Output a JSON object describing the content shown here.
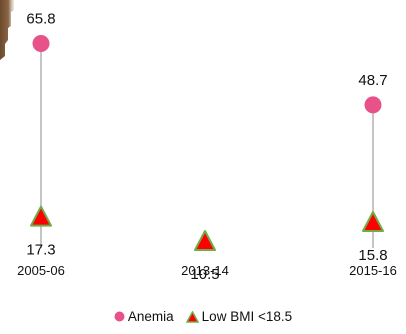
{
  "chart_data": {
    "type": "dot",
    "categories": [
      "2005-06",
      "2013-14",
      "2015-16"
    ],
    "series": [
      {
        "name": "Anemia",
        "marker": "circle",
        "color": "#e8528a",
        "values": [
          65.8,
          null,
          48.7
        ]
      },
      {
        "name": "Low BMI <18.5",
        "marker": "triangle",
        "color": "#ff0000",
        "edge_color": "#70ad47",
        "values": [
          17.3,
          10.5,
          15.8
        ]
      }
    ],
    "value_labels": {
      "Anemia": [
        "65.8",
        "",
        "48.7"
      ],
      "Low BMI <18.5": [
        "17.3",
        "10.5",
        "15.8"
      ]
    },
    "connector_color": "#a6a6a6",
    "legend_position": "bottom",
    "grid": false,
    "axes_visible": false,
    "title": "",
    "xlabel": "",
    "ylabel": ""
  }
}
